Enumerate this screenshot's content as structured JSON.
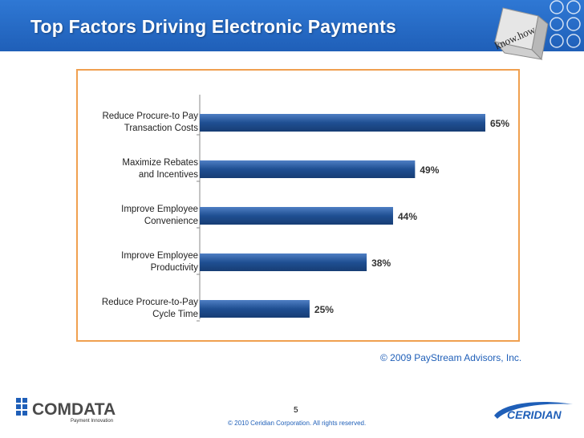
{
  "slide": {
    "title": "Top Factors Driving Electronic Payments",
    "source_credit": "© 2009 PayStream Advisors, Inc.",
    "page_number": "5",
    "footer_copyright": "© 2010 Ceridian Corporation. All rights reserved.",
    "badge_text": "know.how",
    "logo_left": {
      "name": "COMDATA",
      "tagline": "Payment Innovation"
    },
    "logo_right": {
      "name": "CERIDIAN"
    },
    "colors": {
      "header": "#1f5fb8",
      "bar": "#1f4f92",
      "frame": "#f0a050"
    }
  },
  "chart_data": {
    "type": "bar",
    "orientation": "horizontal",
    "categories": [
      [
        "Reduce Procure-to Pay",
        "Transaction Costs"
      ],
      [
        "Maximize Rebates",
        "and Incentives"
      ],
      [
        "Improve Employee",
        "Convenience"
      ],
      [
        "Improve Employee",
        "Productivity"
      ],
      [
        "Reduce Procure-to-Pay",
        "Cycle Time"
      ]
    ],
    "values": [
      65,
      49,
      44,
      38,
      25
    ],
    "value_labels": [
      "65%",
      "49%",
      "44%",
      "38%",
      "25%"
    ],
    "unit": "%",
    "xlim": [
      0,
      100
    ],
    "grid": false,
    "legend": "none"
  }
}
